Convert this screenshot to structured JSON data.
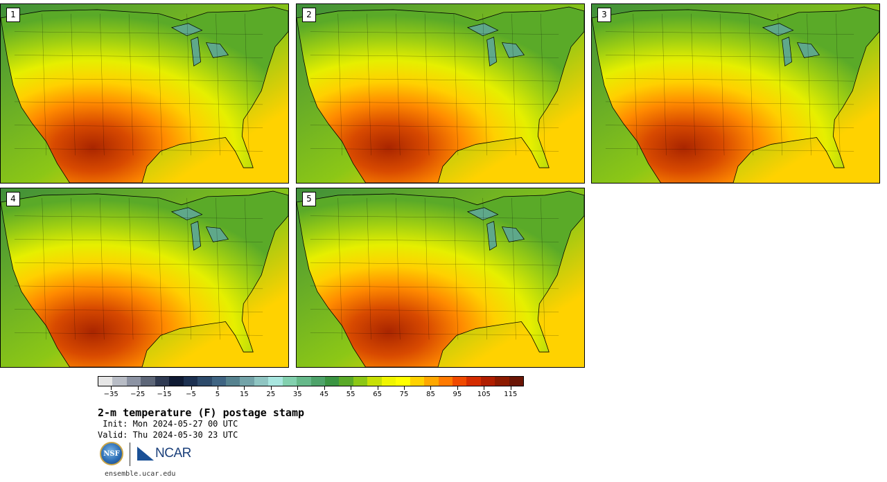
{
  "panels": [
    {
      "label": "1"
    },
    {
      "label": "2"
    },
    {
      "label": "3"
    },
    {
      "label": "4"
    },
    {
      "label": "5"
    }
  ],
  "colorbar": {
    "colors": [
      "#e6e6e6",
      "#b8bcc5",
      "#8c93a3",
      "#5d6678",
      "#2f3a52",
      "#0f1a33",
      "#1c3050",
      "#2d4a6a",
      "#3f6482",
      "#56828f",
      "#73a3a8",
      "#8fc5c2",
      "#a8e6df",
      "#82d0ae",
      "#66b98a",
      "#4ea36a",
      "#3a9442",
      "#5aaa28",
      "#8cc716",
      "#c7e005",
      "#f0f500",
      "#ffff00",
      "#ffd200",
      "#ffa800",
      "#ff7a00",
      "#f04a00",
      "#d42c00",
      "#b01e00",
      "#8c1a00",
      "#6a1505"
    ],
    "tick_values": [
      -35,
      -25,
      -15,
      -5,
      5,
      15,
      25,
      35,
      45,
      55,
      65,
      75,
      85,
      95,
      105,
      115
    ],
    "tick_labels": [
      "−35",
      "−25",
      "−15",
      "−5",
      "5",
      "15",
      "25",
      "35",
      "45",
      "55",
      "65",
      "75",
      "85",
      "95",
      "105",
      "115"
    ],
    "min": -40,
    "max": 120
  },
  "title": "2-m temperature (F) postage stamp",
  "init_line": " Init: Mon 2024-05-27 00 UTC",
  "valid_line": "Valid: Thu 2024-05-30 23 UTC",
  "logos": {
    "nsf": "NSF",
    "ncar": "NCAR"
  },
  "url": "ensemble.ucar.edu"
}
